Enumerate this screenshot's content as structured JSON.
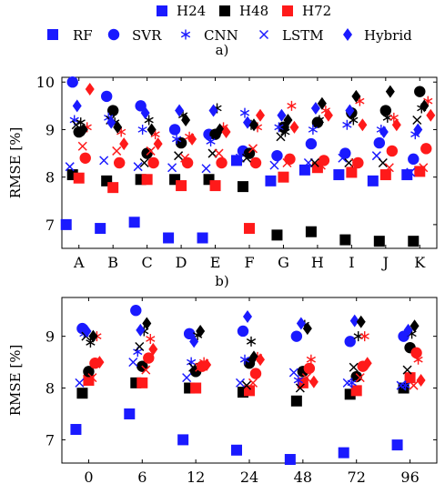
{
  "legend": {
    "horizons": [
      {
        "label": "H24",
        "color": "#1a1aff"
      },
      {
        "label": "H48",
        "color": "#000000"
      },
      {
        "label": "H72",
        "color": "#ff1a1a"
      }
    ],
    "models": [
      {
        "label": "RF",
        "marker": "square"
      },
      {
        "label": "SVR",
        "marker": "circle"
      },
      {
        "label": "CNN",
        "marker": "asterisk"
      },
      {
        "label": "LSTM",
        "marker": "cross"
      },
      {
        "label": "Hybrid",
        "marker": "diamond"
      }
    ]
  },
  "chart_data": [
    {
      "type": "scatter",
      "panel_label": "a)",
      "ylabel": "RMSE [%]",
      "xlabel": "",
      "categories": [
        "A",
        "B",
        "C",
        "D",
        "E",
        "F",
        "G",
        "H",
        "I",
        "J",
        "K"
      ],
      "ylim": [
        6.5,
        10.1
      ],
      "yticks": [
        7,
        8,
        9,
        10
      ],
      "grid": false,
      "series": [
        {
          "name": "RF",
          "horizon": "H24",
          "values": [
            7.0,
            6.92,
            7.05,
            6.72,
            6.72,
            8.35,
            7.92,
            8.15,
            8.05,
            7.92,
            8.05
          ]
        },
        {
          "name": "RF",
          "horizon": "H48",
          "values": [
            8.05,
            7.92,
            7.95,
            7.95,
            7.95,
            7.8,
            6.78,
            6.85,
            6.68,
            6.65,
            6.65
          ]
        },
        {
          "name": "RF",
          "horizon": "H72",
          "values": [
            7.98,
            7.78,
            7.95,
            7.82,
            7.82,
            6.92,
            8.0,
            8.2,
            8.1,
            8.05,
            8.12
          ]
        },
        {
          "name": "SVR",
          "horizon": "H24",
          "values": [
            10.0,
            9.7,
            9.5,
            9.0,
            8.9,
            8.55,
            8.45,
            8.7,
            8.5,
            8.72,
            8.38
          ]
        },
        {
          "name": "SVR",
          "horizon": "H48",
          "values": [
            8.95,
            9.4,
            8.5,
            8.72,
            8.9,
            8.5,
            9.05,
            9.15,
            9.35,
            9.4,
            9.8
          ]
        },
        {
          "name": "SVR",
          "horizon": "H72",
          "values": [
            8.4,
            8.3,
            8.3,
            8.3,
            8.3,
            8.3,
            8.38,
            8.35,
            8.3,
            8.55,
            8.6
          ]
        },
        {
          "name": "CNN",
          "horizon": "H24",
          "values": [
            9.2,
            9.25,
            9.0,
            8.8,
            8.75,
            9.35,
            9.05,
            9.0,
            9.1,
            9.0,
            8.9
          ]
        },
        {
          "name": "CNN",
          "horizon": "H48",
          "values": [
            9.15,
            9.15,
            9.2,
            9.3,
            9.45,
            9.1,
            8.95,
            9.2,
            9.2,
            9.25,
            9.45
          ]
        },
        {
          "name": "CNN",
          "horizon": "H72",
          "values": [
            9.05,
            8.95,
            8.9,
            8.85,
            9.05,
            9.05,
            9.5,
            9.4,
            9.6,
            9.25,
            9.6
          ]
        },
        {
          "name": "LSTM",
          "horizon": "H24",
          "values": [
            8.22,
            8.35,
            8.22,
            8.2,
            8.18,
            8.4,
            8.25,
            8.3,
            8.4,
            8.45,
            8.1
          ]
        },
        {
          "name": "LSTM",
          "horizon": "H48",
          "values": [
            9.1,
            9.2,
            8.3,
            8.45,
            8.5,
            8.4,
            8.85,
            8.3,
            8.3,
            8.3,
            9.2
          ]
        },
        {
          "name": "LSTM",
          "horizon": "H72",
          "values": [
            8.65,
            8.55,
            8.55,
            8.4,
            8.5,
            8.6,
            8.3,
            8.25,
            8.3,
            8.2,
            8.2
          ]
        },
        {
          "name": "Hybrid",
          "horizon": "H24",
          "values": [
            9.5,
            9.15,
            9.35,
            9.4,
            9.4,
            9.15,
            9.3,
            9.45,
            9.4,
            8.95,
            9.0
          ]
        },
        {
          "name": "Hybrid",
          "horizon": "H48",
          "values": [
            9.0,
            9.05,
            9.0,
            9.2,
            9.0,
            9.1,
            9.2,
            9.55,
            9.7,
            9.8,
            9.5
          ]
        },
        {
          "name": "Hybrid",
          "horizon": "H72",
          "values": [
            9.85,
            8.7,
            8.7,
            8.8,
            8.95,
            9.3,
            9.05,
            9.3,
            9.1,
            9.1,
            9.3
          ]
        }
      ]
    },
    {
      "type": "scatter",
      "panel_label": "b)",
      "ylabel": "RMSE [%]",
      "xlabel": "",
      "categories": [
        "0",
        "6",
        "12",
        "24",
        "48",
        "72",
        "96"
      ],
      "ylim": [
        6.55,
        9.75
      ],
      "yticks": [
        7,
        8,
        9
      ],
      "grid": false,
      "series": [
        {
          "name": "RF",
          "horizon": "H24",
          "values": [
            7.2,
            7.5,
            7.0,
            6.8,
            6.62,
            6.75,
            6.9
          ]
        },
        {
          "name": "RF",
          "horizon": "H48",
          "values": [
            7.9,
            8.1,
            8.0,
            7.92,
            7.75,
            7.88,
            8.0
          ]
        },
        {
          "name": "RF",
          "horizon": "H72",
          "values": [
            8.15,
            8.1,
            8.0,
            7.95,
            8.1,
            7.95,
            8.2
          ]
        },
        {
          "name": "SVR",
          "horizon": "H24",
          "values": [
            9.15,
            9.5,
            9.05,
            9.1,
            9.0,
            8.9,
            9.0
          ]
        },
        {
          "name": "SVR",
          "horizon": "H48",
          "values": [
            8.32,
            8.42,
            8.32,
            8.48,
            8.32,
            8.22,
            8.78
          ]
        },
        {
          "name": "SVR",
          "horizon": "H72",
          "values": [
            8.48,
            8.58,
            8.42,
            8.28,
            8.38,
            8.42,
            8.68
          ]
        },
        {
          "name": "CNN",
          "horizon": "H24",
          "values": [
            9.05,
            8.7,
            8.5,
            8.55,
            8.15,
            8.1,
            8.05
          ]
        },
        {
          "name": "CNN",
          "horizon": "H48",
          "values": [
            8.88,
            9.1,
            9.02,
            8.9,
            9.22,
            9.0,
            9.05
          ]
        },
        {
          "name": "CNN",
          "horizon": "H72",
          "values": [
            9.0,
            8.95,
            8.5,
            8.6,
            8.55,
            9.0,
            8.55
          ]
        },
        {
          "name": "LSTM",
          "horizon": "H24",
          "values": [
            8.1,
            8.5,
            8.2,
            8.1,
            8.3,
            8.1,
            8.05
          ]
        },
        {
          "name": "LSTM",
          "horizon": "H48",
          "values": [
            9.0,
            8.8,
            8.4,
            8.05,
            8.0,
            8.4,
            8.35
          ]
        },
        {
          "name": "LSTM",
          "horizon": "H72",
          "values": [
            8.2,
            8.35,
            8.4,
            8.1,
            8.2,
            8.2,
            8.05
          ]
        },
        {
          "name": "Hybrid",
          "horizon": "H24",
          "values": [
            9.1,
            9.12,
            8.9,
            9.38,
            9.25,
            9.3,
            9.12
          ]
        },
        {
          "name": "Hybrid",
          "horizon": "H48",
          "values": [
            9.0,
            9.25,
            9.1,
            8.6,
            9.15,
            9.28,
            9.2
          ]
        },
        {
          "name": "Hybrid",
          "horizon": "H72",
          "values": [
            8.5,
            8.75,
            8.45,
            8.55,
            8.12,
            8.48,
            8.15
          ]
        }
      ]
    }
  ]
}
